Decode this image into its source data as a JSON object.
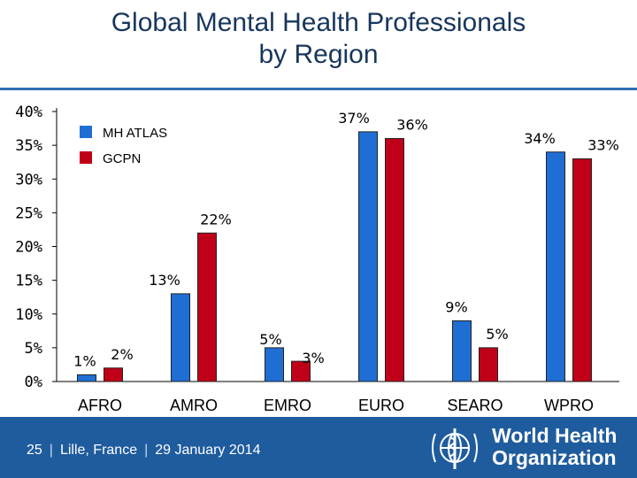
{
  "title_line1": "Global Mental Health Professionals",
  "title_line2": "by Region",
  "footer": {
    "slide_number": "25",
    "location": "Lille, France",
    "date": "29 January 2014"
  },
  "logo": {
    "line1": "World Health",
    "line2": "Organization"
  },
  "chart_data": {
    "type": "bar",
    "categories": [
      "AFRO",
      "AMRO",
      "EMRO",
      "EURO",
      "SEARO",
      "WPRO"
    ],
    "series": [
      {
        "name": "MH ATLAS",
        "values": [
          1,
          13,
          5,
          37,
          9,
          34
        ],
        "labels": [
          "1%",
          "13%",
          "5%",
          "37%",
          "9%",
          "34%"
        ],
        "color": "#1f6ed4"
      },
      {
        "name": "GCPN",
        "values": [
          2,
          22,
          3,
          36,
          5,
          33
        ],
        "labels": [
          "2%",
          "22%",
          "3%",
          "36%",
          "5%",
          "33%"
        ],
        "color": "#c00018"
      }
    ],
    "ylim": [
      0,
      40
    ],
    "yticks": [
      0,
      5,
      10,
      15,
      20,
      25,
      30,
      35,
      40
    ],
    "ytick_labels": [
      "0%",
      "5%",
      "10%",
      "15%",
      "20%",
      "25%",
      "30%",
      "35%",
      "40%"
    ],
    "legend_position": "top-left"
  }
}
